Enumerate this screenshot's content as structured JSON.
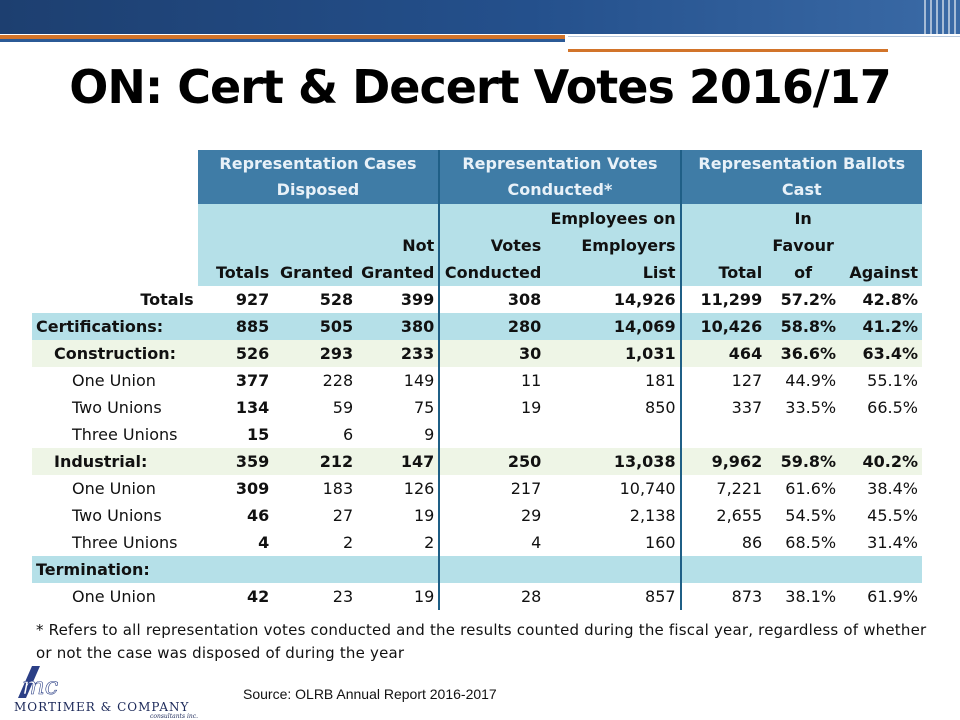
{
  "title": "ON: Cert & Decert Votes 2016/17",
  "header": {
    "group1": "Representation Cases Disposed",
    "group2": "Representation Votes Conducted*",
    "group3": "Representation Ballots Cast",
    "cols": [
      "Totals",
      "Granted",
      "Not Granted",
      "Votes Conducted",
      "Employees on Employers List",
      "Total",
      "In Favour of",
      "Against"
    ]
  },
  "rows": [
    {
      "label": "Totals",
      "cells": [
        "927",
        "528",
        "399",
        "308",
        "14,926",
        "11,299",
        "57.2%",
        "42.8%"
      ]
    },
    {
      "label": "Certifications:",
      "cells": [
        "885",
        "505",
        "380",
        "280",
        "14,069",
        "10,426",
        "58.8%",
        "41.2%"
      ]
    },
    {
      "label": "Construction:",
      "cells": [
        "526",
        "293",
        "233",
        "30",
        "1,031",
        "464",
        "36.6%",
        "63.4%"
      ]
    },
    {
      "label": "One Union",
      "cells": [
        "377",
        "228",
        "149",
        "11",
        "181",
        "127",
        "44.9%",
        "55.1%"
      ]
    },
    {
      "label": "Two Unions",
      "cells": [
        "134",
        "59",
        "75",
        "19",
        "850",
        "337",
        "33.5%",
        "66.5%"
      ]
    },
    {
      "label": "Three Unions",
      "cells": [
        "15",
        "6",
        "9",
        "",
        "",
        "",
        "",
        ""
      ]
    },
    {
      "label": "Industrial:",
      "cells": [
        "359",
        "212",
        "147",
        "250",
        "13,038",
        "9,962",
        "59.8%",
        "40.2%"
      ]
    },
    {
      "label": "One Union",
      "cells": [
        "309",
        "183",
        "126",
        "217",
        "10,740",
        "7,221",
        "61.6%",
        "38.4%"
      ]
    },
    {
      "label": "Two Unions",
      "cells": [
        "46",
        "27",
        "19",
        "29",
        "2,138",
        "2,655",
        "54.5%",
        "45.5%"
      ]
    },
    {
      "label": "Three Unions",
      "cells": [
        "4",
        "2",
        "2",
        "4",
        "160",
        "86",
        "68.5%",
        "31.4%"
      ]
    },
    {
      "label": "Termination:",
      "cells": [
        "",
        "",
        "",
        "",
        "",
        "",
        "",
        ""
      ]
    },
    {
      "label": "One Union",
      "cells": [
        "42",
        "23",
        "19",
        "28",
        "857",
        "873",
        "38.1%",
        "61.9%"
      ]
    }
  ],
  "footnote": "* Refers to all representation votes conducted and the results counted during the fiscal year, regardless of whether or not the case was disposed of during the year",
  "source": "Source: OLRB Annual Report 2016-2017",
  "company": {
    "logo_text": "mc",
    "name": "MORTIMER & COMPANY",
    "sub": "consultants inc."
  },
  "colors": {
    "header_dark": "#3f7ca6",
    "header_light": "#b5e0e8",
    "row_green": "#eef5e6",
    "accent_orange": "#d2742a",
    "accent_blue": "#24508c"
  }
}
